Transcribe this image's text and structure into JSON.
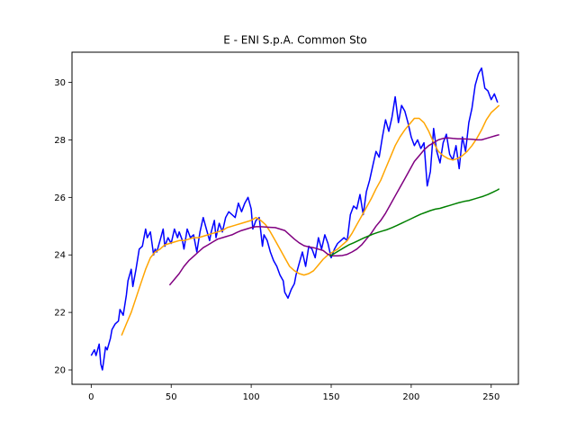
{
  "chart_data": {
    "type": "line",
    "title": "E - ENI S.p.A. Common Sto",
    "xlabel": "",
    "ylabel": "",
    "xlim": [
      -12,
      267
    ],
    "ylim": [
      19.5,
      31.05
    ],
    "xticks": [
      0,
      50,
      100,
      150,
      200,
      250
    ],
    "yticks": [
      20,
      22,
      24,
      26,
      28,
      30
    ],
    "grid": false,
    "series": [
      {
        "color": "#0000ff",
        "x": [
          0,
          2,
          3,
          5,
          6,
          7,
          8,
          9,
          10,
          12,
          13,
          15,
          17,
          18,
          20,
          22,
          23,
          25,
          26,
          28,
          30,
          32,
          34,
          35,
          37,
          39,
          40,
          41,
          43,
          45,
          46,
          48,
          50,
          52,
          54,
          55,
          57,
          58,
          60,
          62,
          64,
          66,
          68,
          70,
          72,
          74,
          75,
          77,
          78,
          80,
          82,
          84,
          86,
          88,
          90,
          92,
          94,
          96,
          98,
          100,
          101,
          103,
          105,
          107,
          108,
          110,
          112,
          114,
          116,
          118,
          120,
          121,
          123,
          125,
          127,
          128,
          130,
          132,
          134,
          136,
          138,
          140,
          142,
          144,
          146,
          148,
          150,
          152,
          154,
          156,
          158,
          160,
          162,
          164,
          166,
          168,
          170,
          172,
          174,
          176,
          178,
          180,
          182,
          184,
          186,
          188,
          190,
          192,
          194,
          196,
          198,
          200,
          202,
          204,
          206,
          208,
          210,
          212,
          214,
          216,
          218,
          220,
          222,
          224,
          226,
          228,
          230,
          232,
          234,
          236,
          238,
          240,
          242,
          244,
          246,
          248,
          250,
          252,
          254
        ],
        "y": [
          20.5,
          20.7,
          20.5,
          20.9,
          20.2,
          20.0,
          20.4,
          20.8,
          20.7,
          21.1,
          21.4,
          21.6,
          21.7,
          22.1,
          21.9,
          22.6,
          23.1,
          23.5,
          22.9,
          23.5,
          24.2,
          24.3,
          24.9,
          24.6,
          24.8,
          24.0,
          24.2,
          24.1,
          24.5,
          24.9,
          24.3,
          24.6,
          24.4,
          24.9,
          24.6,
          24.8,
          24.5,
          24.2,
          24.9,
          24.6,
          24.7,
          24.1,
          24.8,
          25.3,
          24.9,
          24.5,
          24.8,
          25.2,
          24.6,
          25.1,
          24.8,
          25.3,
          25.5,
          25.4,
          25.3,
          25.8,
          25.5,
          25.8,
          26.0,
          25.6,
          24.9,
          25.2,
          25.3,
          24.3,
          24.7,
          24.5,
          24.1,
          23.8,
          23.6,
          23.3,
          23.1,
          22.7,
          22.5,
          22.8,
          23.0,
          23.3,
          23.7,
          24.1,
          23.6,
          24.3,
          24.2,
          23.9,
          24.6,
          24.2,
          24.7,
          24.4,
          23.9,
          24.2,
          24.4,
          24.5,
          24.6,
          24.5,
          25.4,
          25.7,
          25.6,
          26.1,
          25.4,
          26.2,
          26.6,
          27.1,
          27.6,
          27.4,
          28.1,
          28.7,
          28.3,
          28.8,
          29.5,
          28.6,
          29.2,
          29.0,
          28.6,
          28.1,
          27.8,
          28.0,
          27.7,
          27.9,
          26.4,
          26.9,
          28.4,
          27.6,
          27.2,
          27.9,
          28.2,
          27.5,
          27.3,
          27.8,
          27.0,
          28.1,
          27.6,
          28.6,
          29.1,
          29.9,
          30.3,
          30.5,
          29.8,
          29.7,
          29.4,
          29.6,
          29.3
        ]
      },
      {
        "color": "#ffa500",
        "x": [
          19,
          22,
          25,
          28,
          31,
          34,
          37,
          40,
          43,
          46,
          49,
          52,
          55,
          58,
          61,
          64,
          67,
          70,
          73,
          76,
          79,
          82,
          85,
          88,
          91,
          94,
          97,
          100,
          103,
          106,
          109,
          112,
          115,
          118,
          121,
          124,
          127,
          130,
          133,
          136,
          139,
          142,
          145,
          148,
          151,
          154,
          157,
          160,
          163,
          166,
          169,
          172,
          175,
          178,
          181,
          184,
          187,
          190,
          193,
          196,
          199,
          202,
          205,
          208,
          211,
          214,
          217,
          220,
          223,
          226,
          229,
          232,
          235,
          238,
          241,
          244,
          247,
          250,
          253,
          255
        ],
        "y": [
          21.2,
          21.6,
          22.0,
          22.5,
          23.0,
          23.5,
          23.9,
          24.1,
          24.2,
          24.35,
          24.4,
          24.45,
          24.5,
          24.5,
          24.55,
          24.6,
          24.6,
          24.65,
          24.7,
          24.75,
          24.8,
          24.85,
          24.95,
          25.0,
          25.05,
          25.1,
          25.15,
          25.2,
          25.3,
          25.2,
          25.05,
          24.8,
          24.5,
          24.2,
          23.9,
          23.6,
          23.45,
          23.35,
          23.3,
          23.35,
          23.45,
          23.65,
          23.85,
          24.0,
          24.1,
          24.2,
          24.35,
          24.5,
          24.75,
          25.05,
          25.35,
          25.65,
          25.95,
          26.3,
          26.6,
          27.0,
          27.4,
          27.8,
          28.1,
          28.35,
          28.55,
          28.75,
          28.75,
          28.6,
          28.3,
          27.9,
          27.6,
          27.45,
          27.35,
          27.3,
          27.35,
          27.45,
          27.6,
          27.8,
          28.05,
          28.35,
          28.7,
          28.95,
          29.1,
          29.2
        ]
      },
      {
        "color": "#800080",
        "x": [
          49,
          52,
          55,
          58,
          61,
          64,
          67,
          70,
          73,
          76,
          79,
          82,
          85,
          88,
          91,
          94,
          97,
          100,
          103,
          106,
          109,
          112,
          115,
          118,
          121,
          124,
          127,
          130,
          133,
          136,
          139,
          142,
          145,
          148,
          151,
          154,
          157,
          160,
          163,
          166,
          169,
          172,
          175,
          178,
          181,
          184,
          187,
          190,
          193,
          196,
          199,
          202,
          205,
          208,
          211,
          214,
          217,
          220,
          223,
          226,
          229,
          232,
          235,
          238,
          241,
          244,
          247,
          250,
          253,
          255
        ],
        "y": [
          22.95,
          23.15,
          23.35,
          23.6,
          23.8,
          23.95,
          24.1,
          24.25,
          24.35,
          24.45,
          24.55,
          24.6,
          24.65,
          24.7,
          24.78,
          24.85,
          24.9,
          24.95,
          24.98,
          24.98,
          24.97,
          24.96,
          24.95,
          24.9,
          24.85,
          24.7,
          24.55,
          24.42,
          24.32,
          24.28,
          24.25,
          24.2,
          24.15,
          24.02,
          23.97,
          23.97,
          23.98,
          24.02,
          24.1,
          24.2,
          24.35,
          24.55,
          24.75,
          25.0,
          25.2,
          25.45,
          25.75,
          26.05,
          26.35,
          26.65,
          26.95,
          27.25,
          27.45,
          27.65,
          27.8,
          27.9,
          28.0,
          28.05,
          28.07,
          28.05,
          28.04,
          28.04,
          28.03,
          28.02,
          28.0,
          28.0,
          28.05,
          28.1,
          28.15,
          28.18
        ]
      },
      {
        "color": "#008000",
        "x": [
          149,
          152,
          155,
          158,
          161,
          164,
          167,
          170,
          173,
          176,
          179,
          182,
          185,
          188,
          191,
          194,
          197,
          200,
          203,
          206,
          209,
          212,
          215,
          218,
          221,
          224,
          227,
          230,
          233,
          236,
          239,
          242,
          245,
          248,
          251,
          254,
          255
        ],
        "y": [
          23.95,
          24.05,
          24.15,
          24.25,
          24.35,
          24.42,
          24.5,
          24.58,
          24.65,
          24.72,
          24.78,
          24.83,
          24.88,
          24.95,
          25.02,
          25.1,
          25.18,
          25.26,
          25.34,
          25.42,
          25.48,
          25.54,
          25.59,
          25.62,
          25.67,
          25.72,
          25.77,
          25.82,
          25.86,
          25.89,
          25.94,
          25.99,
          26.04,
          26.1,
          26.18,
          26.26,
          26.3
        ]
      }
    ]
  }
}
